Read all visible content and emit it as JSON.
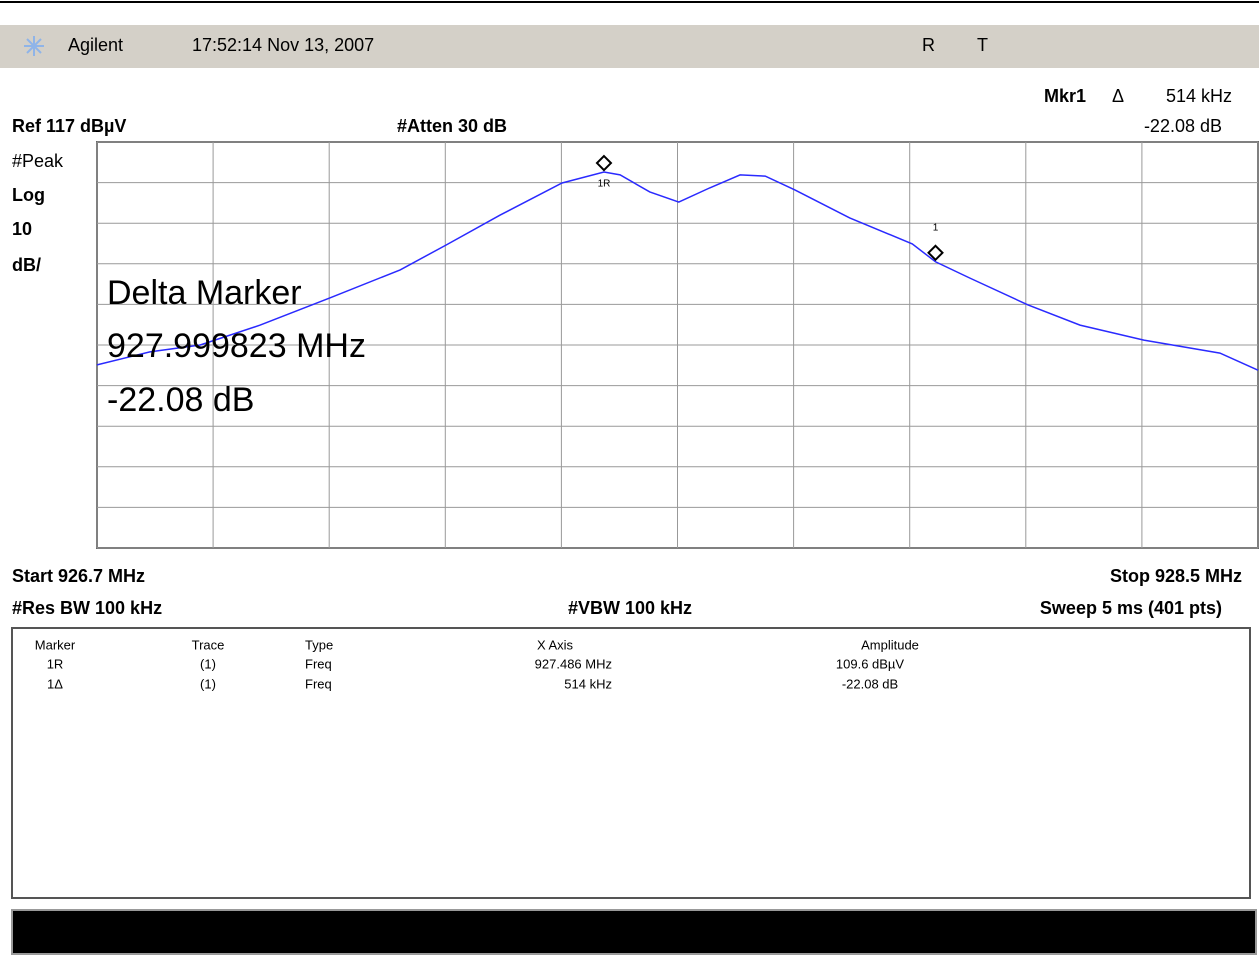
{
  "header": {
    "brand": "Agilent",
    "datetime": "17:52:14 Nov 13, 2007",
    "status": [
      "R",
      "T"
    ]
  },
  "marker_readout": {
    "label": "Mkr1",
    "delta": "Δ",
    "value": "514 kHz",
    "amplitude": "-22.08 dB"
  },
  "settings": {
    "ref": "Ref 117 dBµV",
    "atten": "#Atten 30 dB",
    "left": [
      "#Peak",
      "Log",
      "10",
      "dB/"
    ]
  },
  "overlay": [
    "Delta Marker",
    "927.999823 MHz",
    "-22.08 dB"
  ],
  "footer": {
    "start": "Start 926.7 MHz",
    "stop": "Stop 928.5 MHz",
    "rbw": "#Res BW 100 kHz",
    "vbw": "#VBW 100 kHz",
    "sweep": "Sweep 5 ms (401 pts)"
  },
  "trace": {
    "type": "line",
    "color": "#2a2aff",
    "x": [
      926.7,
      926.782,
      926.86,
      926.953,
      927.061,
      927.17,
      927.241,
      927.325,
      927.421,
      927.486,
      927.511,
      927.557,
      927.602,
      927.65,
      927.697,
      927.736,
      927.782,
      927.867,
      927.964,
      928.0,
      928.053,
      928.143,
      928.224,
      928.323,
      928.441,
      928.5
    ],
    "values": [
      62.1,
      65.3,
      67.0,
      71.9,
      78.6,
      85.5,
      91.6,
      99.0,
      106.9,
      109.6,
      108.9,
      104.7,
      102.2,
      105.7,
      108.9,
      108.6,
      105.2,
      98.3,
      91.9,
      87.5,
      83.5,
      76.9,
      71.9,
      68.2,
      65.0,
      60.8
    ],
    "xlim": [
      926.7,
      928.5
    ],
    "ylim": [
      17,
      117
    ],
    "xticks": [
      926.7,
      926.88,
      927.06,
      927.24,
      927.42,
      927.6,
      927.78,
      927.96,
      928.14,
      928.32,
      928.5
    ],
    "yticks": [
      17,
      27,
      37,
      47,
      57,
      67,
      77,
      87,
      97,
      107,
      117
    ],
    "grid": true
  },
  "markers": [
    {
      "label": "1R",
      "x": 927.486,
      "y": 109.6
    },
    {
      "label": "1",
      "x": 928.0,
      "y": 87.5
    }
  ],
  "table": {
    "columns": [
      "Marker",
      "Trace",
      "Type",
      "X Axis",
      "Amplitude"
    ],
    "rows": [
      [
        "1R",
        "(1)",
        "Freq",
        "927.486 MHz",
        "109.6 dBµV"
      ],
      [
        "1Δ",
        "(1)",
        "Freq",
        "514 kHz",
        "-22.08 dB"
      ]
    ]
  }
}
